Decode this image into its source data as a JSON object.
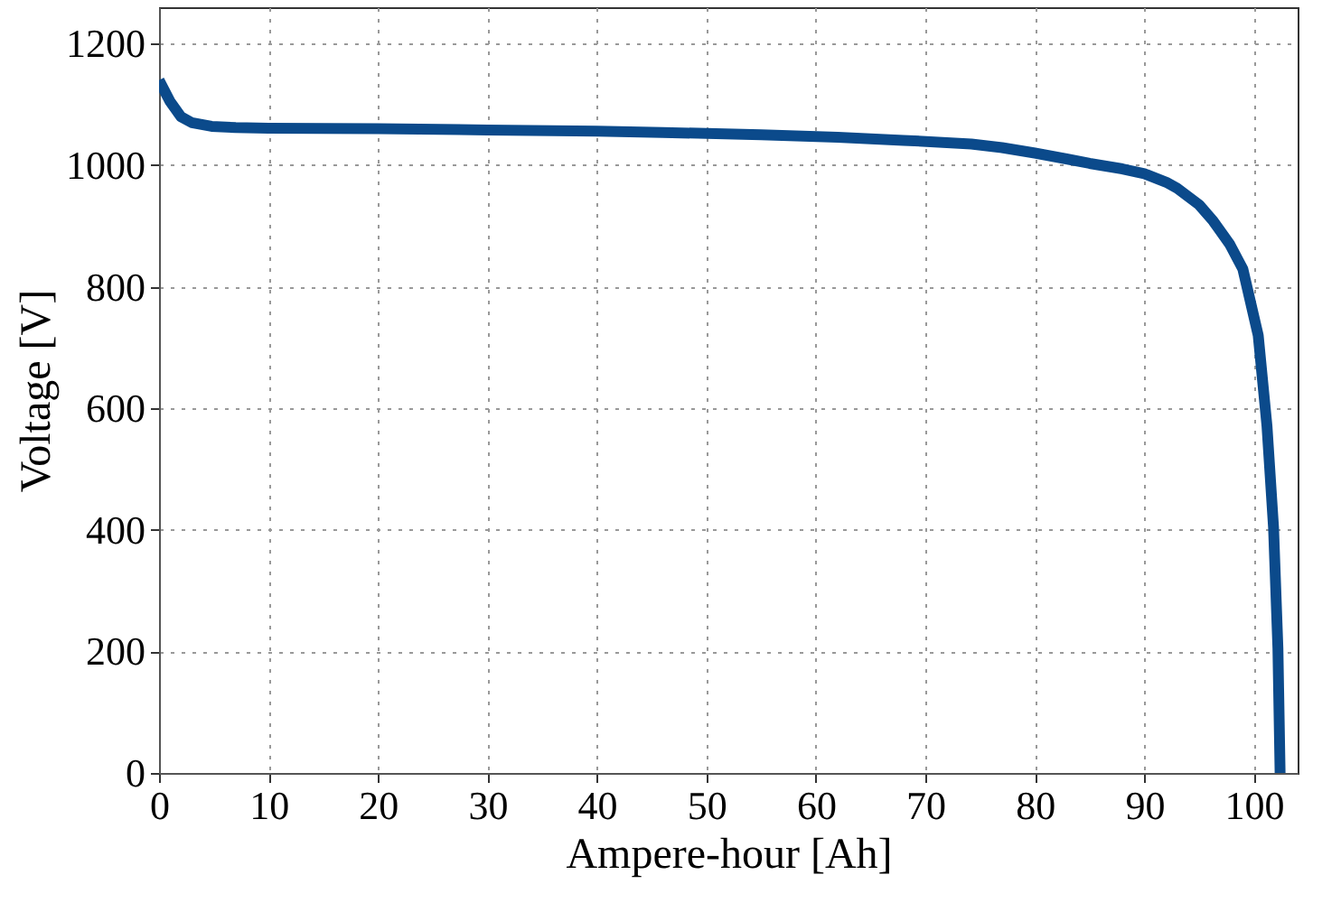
{
  "chart_data": {
    "type": "line",
    "xlabel": "Ampere-hour [Ah]",
    "ylabel": "Voltage [V]",
    "x": [
      0,
      1,
      2,
      3,
      4.8,
      7,
      10,
      20,
      30,
      40,
      46,
      55,
      62,
      68,
      74.2,
      77,
      80,
      83,
      85,
      88,
      90,
      92,
      93,
      95,
      96.3,
      97.8,
      99,
      100.4,
      101.2,
      101.8,
      102.2,
      102.4
    ],
    "series": [
      {
        "color": "#0b4a8b",
        "values": [
          1140,
          1105,
          1080,
          1070,
          1064,
          1062,
          1061,
          1060,
          1058,
          1056,
          1054,
          1050,
          1046,
          1041,
          1035,
          1029,
          1020,
          1010,
          1003,
          994,
          986,
          972,
          962,
          935,
          908,
          870,
          829,
          720,
          571,
          404,
          205,
          0
        ]
      }
    ],
    "xlim": [
      0,
      104
    ],
    "xticks": [
      0,
      10,
      20,
      30,
      40,
      50,
      60,
      70,
      80,
      90,
      100
    ],
    "ylim": [
      0,
      1260
    ],
    "yticks": [
      0,
      200,
      400,
      600,
      800,
      1000,
      1200
    ],
    "grid": true,
    "line_style": "solid",
    "marker": "none"
  }
}
